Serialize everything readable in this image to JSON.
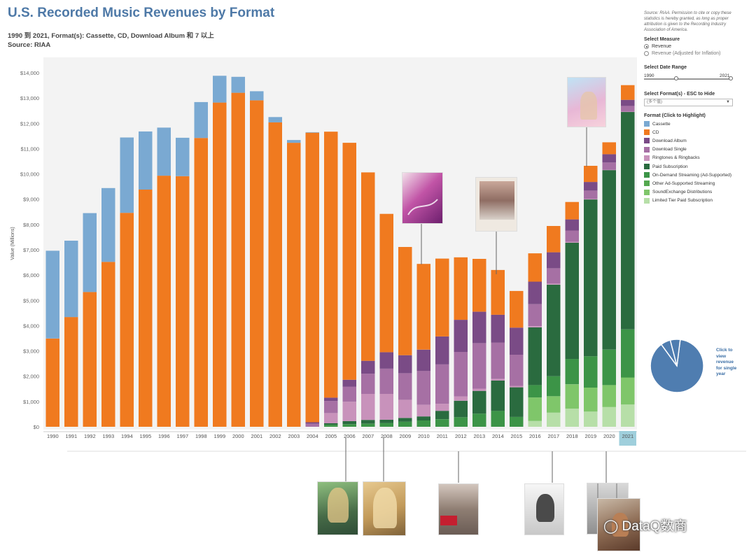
{
  "header": {
    "title": "U.S. Recorded Music Revenues by Format",
    "subtitle": "1990 到 2021, Format(s): Cassette, CD, Download Album 和 7 以上",
    "source": "Source: RIAA"
  },
  "side_panel": {
    "note": "Source: RIAA. Permission to cite or copy these statistics is hereby granted, as long as proper attribution is given to the Recording Industry Association of America.",
    "measure": {
      "label": "Select Measure",
      "options": [
        "Revenue",
        "Revenue (Adjusted for Inflation)"
      ],
      "selected": "Revenue"
    },
    "date_range": {
      "label": "Select Date Range",
      "start": "1990",
      "end": "2021"
    },
    "formats_filter": {
      "label": "Select Format(s) - ESC to Hide",
      "value": "(多个值)"
    },
    "legend_title": "Format (Click to Highlight)",
    "pie_caption": "Click to view revenue for single year"
  },
  "chart_data": {
    "type": "bar",
    "stacked": true,
    "ylabel": "Value (Millions)",
    "xlabel": "",
    "ylim": [
      0,
      14000
    ],
    "y_ticks": [
      "$0",
      "$1,000",
      "$2,000",
      "$3,000",
      "$4,000",
      "$5,000",
      "$6,000",
      "$7,000",
      "$8,000",
      "$9,000",
      "$10,000",
      "$11,000",
      "$12,000",
      "$13,000",
      "$14,000"
    ],
    "grid": false,
    "highlighted_category": "2021",
    "categories": [
      "1990",
      "1991",
      "1992",
      "1993",
      "1994",
      "1995",
      "1996",
      "1997",
      "1998",
      "1999",
      "2000",
      "2001",
      "2002",
      "2003",
      "2004",
      "2005",
      "2006",
      "2007",
      "2008",
      "2009",
      "2010",
      "2011",
      "2012",
      "2013",
      "2014",
      "2015",
      "2016",
      "2017",
      "2018",
      "2019",
      "2020",
      "2021"
    ],
    "series": [
      {
        "name": "Limited Tier Paid Subscription",
        "color": "#b7dfa8",
        "values": [
          0,
          0,
          0,
          0,
          0,
          0,
          0,
          0,
          0,
          0,
          0,
          0,
          0,
          0,
          0,
          0,
          0,
          0,
          0,
          0,
          0,
          0,
          0,
          0,
          0,
          0,
          230,
          560,
          720,
          600,
          780,
          880
        ]
      },
      {
        "name": "SoundExchange Distributions",
        "color": "#7fc66a",
        "values": [
          0,
          0,
          0,
          0,
          0,
          0,
          0,
          0,
          0,
          0,
          0,
          0,
          0,
          0,
          0,
          0,
          0,
          0,
          0,
          0,
          0,
          0,
          0,
          0,
          0,
          0,
          930,
          650,
          960,
          950,
          870,
          1070
        ]
      },
      {
        "name": "Other Ad-Supported Streaming",
        "color": "#54a84f",
        "values": [
          0,
          0,
          0,
          0,
          0,
          0,
          0,
          0,
          0,
          0,
          0,
          0,
          0,
          0,
          0,
          0,
          0,
          0,
          0,
          0,
          0,
          0,
          0,
          0,
          0,
          0,
          0,
          0,
          0,
          0,
          0,
          0
        ]
      },
      {
        "name": "On-Demand Streaming (Ad-Supported)",
        "color": "#3c9447",
        "values": [
          0,
          0,
          0,
          0,
          0,
          0,
          0,
          0,
          0,
          0,
          0,
          0,
          0,
          0,
          0,
          80,
          100,
          120,
          150,
          200,
          250,
          300,
          380,
          520,
          630,
          390,
          490,
          790,
          1000,
          1240,
          1400,
          1900
        ]
      },
      {
        "name": "Paid Subscription",
        "color": "#2a6b3f",
        "values": [
          0,
          0,
          0,
          0,
          0,
          0,
          0,
          0,
          0,
          0,
          0,
          0,
          0,
          0,
          0,
          60,
          120,
          150,
          130,
          150,
          160,
          330,
          650,
          900,
          1200,
          1170,
          2280,
          3620,
          4600,
          6200,
          7100,
          8600
        ]
      },
      {
        "name": "Ringtones & Ringbacks",
        "color": "#c892bb",
        "values": [
          0,
          0,
          0,
          0,
          0,
          0,
          0,
          0,
          0,
          0,
          0,
          0,
          0,
          0,
          0,
          400,
          770,
          1030,
          1020,
          720,
          460,
          280,
          170,
          90,
          60,
          60,
          50,
          40,
          30,
          20,
          10,
          10
        ]
      },
      {
        "name": "Download Single",
        "color": "#a670a4",
        "values": [
          0,
          0,
          0,
          0,
          0,
          0,
          0,
          0,
          0,
          0,
          0,
          0,
          0,
          0,
          120,
          480,
          600,
          800,
          1000,
          1050,
          1340,
          1560,
          1760,
          1800,
          1440,
          1230,
          870,
          610,
          450,
          330,
          290,
          230
        ]
      },
      {
        "name": "Download Album",
        "color": "#7a4b86",
        "values": [
          0,
          0,
          0,
          0,
          0,
          0,
          0,
          0,
          0,
          0,
          0,
          0,
          0,
          0,
          60,
          130,
          270,
          510,
          650,
          710,
          840,
          1100,
          1270,
          1240,
          1100,
          1070,
          890,
          630,
          440,
          340,
          330,
          240
        ]
      },
      {
        "name": "CD",
        "color": "#f07a1f",
        "values": [
          3490,
          4340,
          5330,
          6520,
          8460,
          9380,
          9930,
          9910,
          11420,
          12820,
          13210,
          12910,
          12040,
          11230,
          11450,
          10520,
          9370,
          7450,
          5470,
          4280,
          3390,
          3080,
          2470,
          2090,
          1770,
          1450,
          1120,
          1040,
          690,
          640,
          470,
          580
        ]
      },
      {
        "name": "Cassette",
        "color": "#7aa9d2",
        "values": [
          3470,
          3020,
          3120,
          2920,
          2980,
          2300,
          1900,
          1520,
          1420,
          1060,
          630,
          360,
          210,
          110,
          20,
          0,
          0,
          0,
          0,
          0,
          0,
          0,
          0,
          0,
          0,
          0,
          0,
          0,
          0,
          0,
          0,
          0
        ]
      }
    ]
  }
}
